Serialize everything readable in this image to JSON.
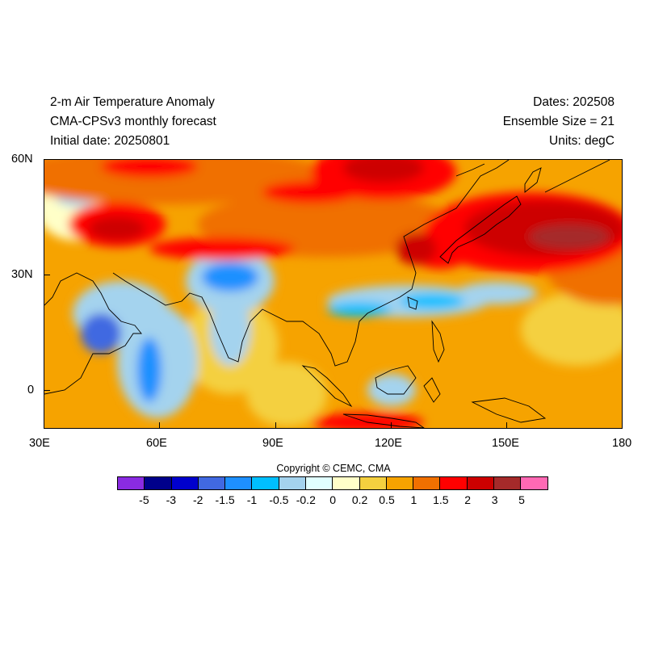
{
  "header": {
    "title": "2-m Air Temperature Anomaly",
    "model": "CMA-CPSv3 monthly forecast",
    "initial_date": "Initial date: 20250801",
    "dates": "Dates: 202508",
    "ensemble": "Ensemble Size = 21",
    "units": "Units: degC"
  },
  "axes": {
    "lat_labels": [
      "60N",
      "30N",
      "0"
    ],
    "lon_labels": [
      "30E",
      "60E",
      "90E",
      "120E",
      "150E",
      "180"
    ],
    "lat_range": [
      -10,
      60
    ],
    "lon_range": [
      30,
      180
    ]
  },
  "copyright": "Copyright © CEMC, CMA",
  "colorbar": {
    "labels": [
      "-5",
      "-3",
      "-2",
      "-1.5",
      "-1",
      "-0.5",
      "-0.2",
      "0",
      "0.2",
      "0.5",
      "1",
      "1.5",
      "2",
      "3",
      "5"
    ],
    "colors": [
      "#8a2be2",
      "#00008b",
      "#0000cd",
      "#4169e1",
      "#1e90ff",
      "#00bfff",
      "#a4d3ee",
      "#e0ffff",
      "#ffffc8",
      "#f4d03f",
      "#f6a300",
      "#f07000",
      "#ff0000",
      "#cd0000",
      "#a52a2a",
      "#ff69b4"
    ]
  }
}
